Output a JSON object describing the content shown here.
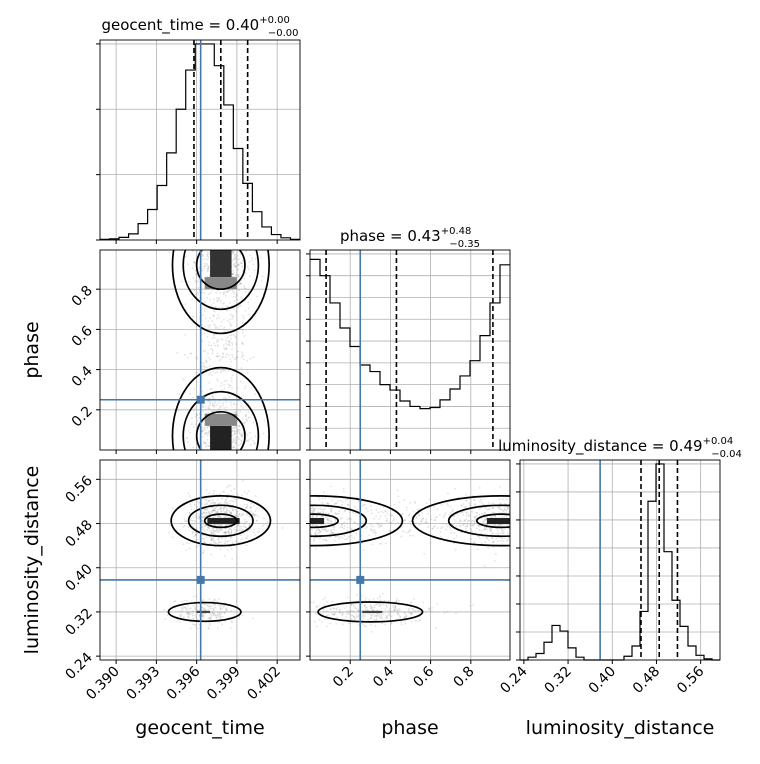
{
  "chart_data": {
    "type": "corner",
    "colors": {
      "truth": "#4477aa",
      "hist": "#000000",
      "grid": "#b0b0b0",
      "samples": "#999999"
    },
    "params": [
      {
        "name": "geocent_time",
        "title_prefix": "geocent_time = 0.40",
        "err_plus": "+0.00",
        "err_minus": "−0.00",
        "range": [
          0.3888,
          0.4037
        ],
        "ticks": [
          0.39,
          0.393,
          0.396,
          0.399,
          0.402
        ],
        "tick_labels": [
          "0.390",
          "0.393",
          "0.396",
          "0.399",
          "0.402"
        ],
        "truth": 0.3963,
        "quantiles": [
          0.3958,
          0.3978,
          0.3998
        ],
        "hist_counts": [
          0.3,
          0.5,
          1.2,
          2.8,
          7.5,
          14,
          25,
          40,
          60,
          78,
          90,
          90,
          80,
          62,
          42,
          26,
          13,
          6,
          2.5,
          1,
          0.3
        ],
        "hist_ticks": [
          0,
          30,
          60,
          90
        ]
      },
      {
        "name": "phase",
        "title_prefix": "phase = 0.43",
        "err_plus": "+0.48",
        "err_minus": "−0.35",
        "range": [
          0.0,
          0.995
        ],
        "ticks": [
          0.2,
          0.4,
          0.6,
          0.8
        ],
        "tick_labels": [
          "0.2",
          "0.4",
          "0.6",
          "0.8"
        ],
        "truth": 0.25,
        "quantiles": [
          0.08,
          0.43,
          0.91
        ],
        "hist_counts": [
          175,
          160,
          135,
          112,
          95,
          78,
          72,
          60,
          55,
          45,
          40,
          38,
          39,
          46,
          56,
          68,
          82,
          105,
          135,
          170
        ],
        "hist_ticks": [
          0,
          20,
          40,
          60,
          80,
          100,
          120,
          140,
          160,
          180
        ]
      },
      {
        "name": "luminosity_distance",
        "title_prefix": "luminosity_distance = 0.49",
        "err_plus": "+0.04",
        "err_minus": "−0.04",
        "range": [
          0.233,
          0.595
        ],
        "ticks": [
          0.24,
          0.32,
          0.4,
          0.48,
          0.56
        ],
        "tick_labels": [
          "0.24",
          "0.32",
          "0.40",
          "0.48",
          "0.56"
        ],
        "truth": 0.378,
        "quantiles": [
          0.452,
          0.485,
          0.518
        ],
        "hist_counts": [
          0,
          1.5,
          3.5,
          9.5,
          18.5,
          15.5,
          6.5,
          1.5,
          0,
          0,
          0,
          0,
          0,
          2,
          7.5,
          26,
          85,
          105,
          58,
          32,
          18,
          7.5,
          2.5,
          0.6,
          0
        ],
        "hist_ticks": [
          0,
          15,
          30,
          45,
          60,
          75,
          90,
          105
        ]
      }
    ]
  }
}
